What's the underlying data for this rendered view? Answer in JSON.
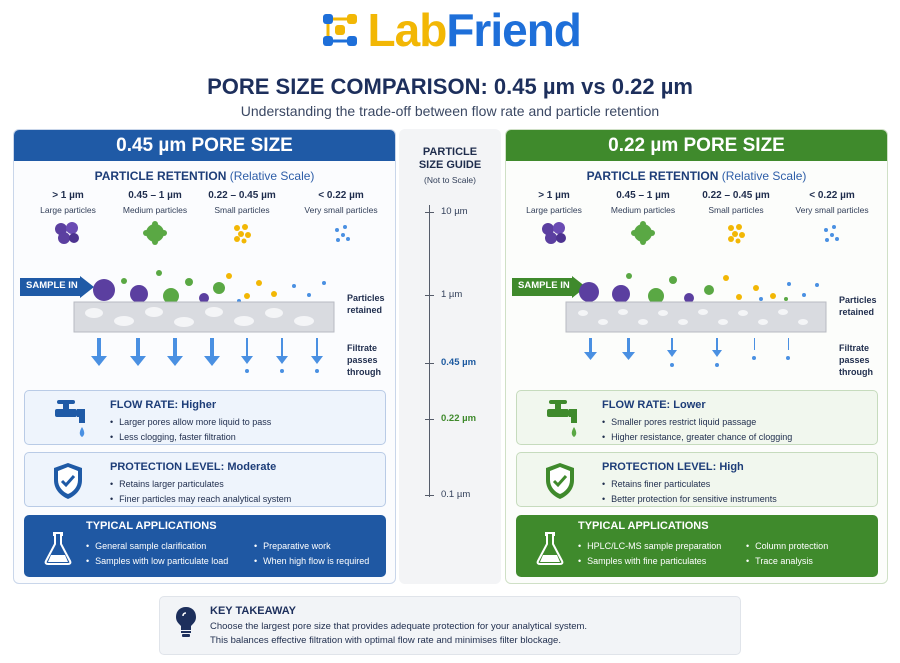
{
  "brand": {
    "lab": "Lab",
    "friend": "Friend"
  },
  "title": "PORE SIZE COMPARISON: 0.45 µm vs 0.22 µm",
  "subtitle": "Understanding the trade-off between flow rate and particle retention",
  "colors": {
    "blue": "#1f5aa6",
    "green": "#3f8a2c",
    "purple": "#5b3fa0",
    "particle_green": "#5aa844",
    "yellow": "#f2b705",
    "lightblue": "#4a90e2"
  },
  "categories": [
    {
      "size": "> 1 µm",
      "desc": "Large particles",
      "icon": "large-particle-icon"
    },
    {
      "size": "0.45 – 1 µm",
      "desc": "Medium particles",
      "icon": "medium-particle-icon"
    },
    {
      "size": "0.22 – 0.45 µm",
      "desc": "Small particles",
      "icon": "small-particle-icon"
    },
    {
      "size": "< 0.22 µm",
      "desc": "Very small particles",
      "icon": "very-small-particle-icon"
    }
  ],
  "common": {
    "retention_title": "PARTICLE RETENTION",
    "retention_rel": "(Relative Scale)",
    "sample_in": "SAMPLE IN",
    "particles_retained": [
      "Particles",
      "retained"
    ],
    "filtrate": [
      "Filtrate",
      "passes",
      "through"
    ]
  },
  "left": {
    "header": "0.45 µm PORE SIZE",
    "flow_title": "FLOW RATE: Higher",
    "flow_points": [
      "Larger pores allow more liquid to pass",
      "Less clogging, faster filtration"
    ],
    "protect_title": "PROTECTION LEVEL: Moderate",
    "protect_points": [
      "Retains larger particulates",
      "Finer particles may reach analytical system"
    ],
    "apps_title": "TYPICAL APPLICATIONS",
    "apps_col1": [
      "General sample clarification",
      "Samples with low particulate load"
    ],
    "apps_col2": [
      "Preparative work",
      "When high flow is required"
    ]
  },
  "right": {
    "header": "0.22 µm PORE SIZE",
    "flow_title": "FLOW RATE: Lower",
    "flow_points": [
      "Smaller pores restrict liquid passage",
      "Higher resistance, greater chance of clogging"
    ],
    "protect_title": "PROTECTION LEVEL: High",
    "protect_points": [
      "Retains finer particulates",
      "Better protection for sensitive instruments"
    ],
    "apps_title": "TYPICAL APPLICATIONS",
    "apps_col1": [
      "HPLC/LC-MS sample preparation",
      "Samples with fine particulates"
    ],
    "apps_col2": [
      "Column protection",
      "Trace analysis"
    ]
  },
  "guide": {
    "title": [
      "PARTICLE",
      "SIZE GUIDE"
    ],
    "sub": "(Not to Scale)",
    "labels": [
      "10 µm",
      "1 µm",
      "0.45 µm",
      "0.22 µm",
      "0.1 µm"
    ]
  },
  "takeaway": {
    "title": "KEY TAKEAWAY",
    "line1": "Choose the largest pore size that provides adequate protection for your analytical system.",
    "line2": "This balances effective filtration with optimal flow rate and minimises filter blockage."
  }
}
